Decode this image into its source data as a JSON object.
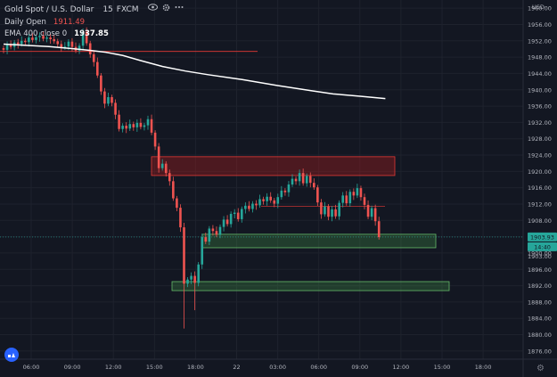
{
  "legend": {
    "symbol": "Gold Spot / U.S. Dollar",
    "interval": "15",
    "exchange": "FXCM",
    "daily_open_label": "Daily Open",
    "daily_open_value": "1911.49",
    "ema_label": "EMA 400 close 0",
    "ema_value": "1937.85"
  },
  "price_axis": {
    "currency": "USD",
    "last_price": "1903.93",
    "countdown": "14:40",
    "secondary_label": "1903.00"
  },
  "colors": {
    "background": "#131722",
    "up": "#26a69a",
    "down": "#ef5350",
    "ema": "#ffffff",
    "last_price_line": "#26a69a",
    "resistance_zone": "#b71c1c",
    "support_zone": "#4caf50"
  },
  "icons": [
    "eye-icon",
    "settings-icon",
    "more-icon",
    "tradingview-logo-icon",
    "chart-settings-gear-icon"
  ],
  "chart_data": {
    "type": "candlestick",
    "y_range": [
      1874,
      1962
    ],
    "x_ticks": [
      "06:00",
      "09:00",
      "12:00",
      "15:00",
      "18:00",
      "22",
      "03:00",
      "06:00",
      "09:00",
      "12:00",
      "15:00",
      "18:00"
    ],
    "y_ticks": [
      "1960.00",
      "1956.00",
      "1952.00",
      "1948.00",
      "1944.00",
      "1940.00",
      "1936.00",
      "1932.00",
      "1928.00",
      "1924.00",
      "1920.00",
      "1916.00",
      "1912.00",
      "1908.00",
      "1904.00",
      "1900.00",
      "1896.00",
      "1892.00",
      "1888.00",
      "1884.00",
      "1880.00",
      "1876.00"
    ],
    "candles_close": [
      1949.8,
      1951.0,
      1950.5,
      1951.6,
      1951.2,
      1952.0,
      1951.7,
      1952.8,
      1952.2,
      1952.9,
      1953.2,
      1952.5,
      1952.8,
      1952.4,
      1951.9,
      1951.2,
      1950.4,
      1950.6,
      1951.8,
      1950.5,
      1949.6,
      1950.8,
      1954.2,
      1951.4,
      1948.7,
      1946.8,
      1943.5,
      1939.6,
      1936.6,
      1938.2,
      1936.8,
      1933.9,
      1930.4,
      1931.2,
      1930.5,
      1931.6,
      1930.8,
      1931.9,
      1930.9,
      1931.3,
      1932.8,
      1929.5,
      1926.1,
      1920.8,
      1921.9,
      1919.6,
      1917.6,
      1913.4,
      1911.1,
      1906.3,
      1892.5,
      1893.5,
      1894.4,
      1892.7,
      1897.2,
      1903.9,
      1902.8,
      1906.0,
      1905.4,
      1904.5,
      1906.4,
      1908.2,
      1907.1,
      1909.6,
      1909.9,
      1908.3,
      1910.8,
      1911.6,
      1910.8,
      1912.1,
      1911.7,
      1913.2,
      1912.7,
      1913.8,
      1912.9,
      1912.1,
      1913.7,
      1915.3,
      1914.9,
      1916.8,
      1918.2,
      1917.6,
      1919.6,
      1917.1,
      1918.9,
      1917.2,
      1916.1,
      1912.4,
      1909.5,
      1911.4,
      1908.9,
      1910.7,
      1909.0,
      1912.3,
      1914.1,
      1912.2,
      1915.0,
      1914.1,
      1915.9,
      1913.7,
      1911.8,
      1908.9,
      1911.0,
      1907.8,
      1903.9
    ],
    "ema400": [
      [
        0,
        1951.2
      ],
      [
        20,
        1950.9
      ],
      [
        40,
        1950.6
      ],
      [
        60,
        1950.1
      ],
      [
        75,
        1949.7
      ],
      [
        90,
        1949.2
      ],
      [
        105,
        1948.4
      ],
      [
        120,
        1947.2
      ],
      [
        140,
        1945.7
      ],
      [
        160,
        1944.6
      ],
      [
        180,
        1943.7
      ],
      [
        210,
        1942.5
      ],
      [
        240,
        1941.1
      ],
      [
        270,
        1939.8
      ],
      [
        290,
        1939.0
      ],
      [
        315,
        1938.4
      ],
      [
        336,
        1937.85
      ]
    ],
    "resistance_zone": {
      "from": 1919.0,
      "to": 1923.6
    },
    "support_zones": [
      {
        "from": 1901.3,
        "to": 1904.6
      },
      {
        "from": 1890.8,
        "to": 1893.0
      }
    ],
    "daily_open_level": 1949.4,
    "intraday_level": 1911.49,
    "last_price": 1903.93
  }
}
